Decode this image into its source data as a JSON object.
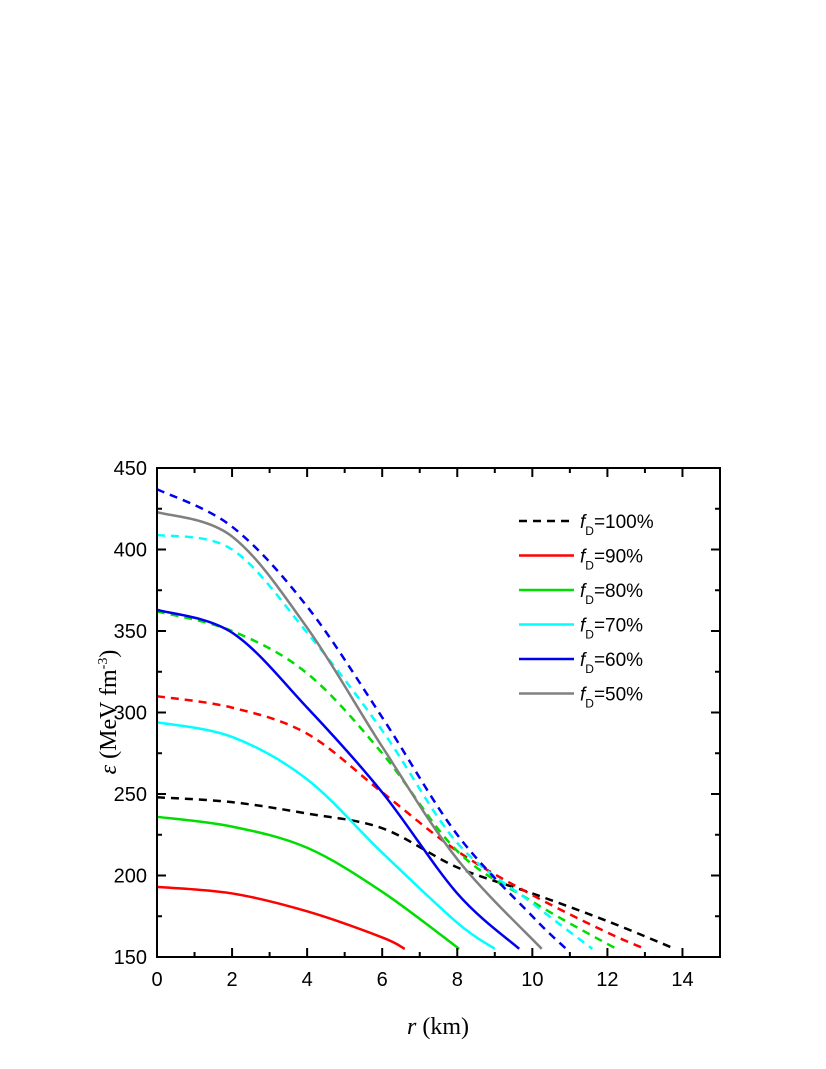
{
  "chart_data": {
    "type": "line",
    "xlabel": {
      "var": "r",
      "unit": "(km)"
    },
    "ylabel": {
      "var": "ε",
      "unit": "(MeV fm",
      "exp": "-3",
      "close": ")"
    },
    "xlim": [
      0,
      15
    ],
    "ylim": [
      150,
      450
    ],
    "xticks": [
      "0",
      "2",
      "4",
      "6",
      "8",
      "10",
      "12",
      "14"
    ],
    "yticks": [
      "150",
      "200",
      "250",
      "300",
      "350",
      "400",
      "450"
    ],
    "grid": false,
    "legend_position": "top-right",
    "legend": [
      {
        "prefix": "f",
        "sub": "D",
        "text": "=100%",
        "color": "#000000",
        "dash": true
      },
      {
        "prefix": "f",
        "sub": "D",
        "text": "=90%",
        "color": "#ff0000",
        "dash": false
      },
      {
        "prefix": "f",
        "sub": "D",
        "text": "=80%",
        "color": "#00dd00",
        "dash": false
      },
      {
        "prefix": "f",
        "sub": "D",
        "text": "=70%",
        "color": "#00ffff",
        "dash": false
      },
      {
        "prefix": "f",
        "sub": "D",
        "text": "=60%",
        "color": "#0000ee",
        "dash": false
      },
      {
        "prefix": "f",
        "sub": "D",
        "text": "=50%",
        "color": "#808080",
        "dash": false
      }
    ],
    "series": [
      {
        "color": "#000000",
        "dash": true,
        "x": [
          0,
          2,
          4,
          6,
          8,
          10,
          12,
          13.8
        ],
        "y": [
          248,
          245,
          238,
          229,
          205,
          189,
          172,
          155
        ]
      },
      {
        "color": "#ff0000",
        "dash": true,
        "x": [
          0,
          2,
          4,
          6,
          8,
          10,
          12,
          13.0
        ],
        "y": [
          310,
          303,
          287,
          251,
          215,
          188,
          165,
          155
        ]
      },
      {
        "color": "#00dd00",
        "dash": true,
        "x": [
          0,
          2,
          4,
          6,
          8,
          10,
          12,
          12.3
        ],
        "y": [
          362,
          350,
          324,
          275,
          215,
          184,
          158,
          155
        ]
      },
      {
        "color": "#00ffff",
        "dash": true,
        "x": [
          0,
          2,
          4,
          6,
          8,
          10,
          11.6
        ],
        "y": [
          409,
          400,
          349,
          289,
          220,
          183,
          155
        ]
      },
      {
        "color": "#0000ee",
        "dash": true,
        "x": [
          0,
          2,
          4,
          6,
          8,
          10,
          10.9
        ],
        "y": [
          437,
          414,
          365,
          297,
          225,
          175,
          155
        ]
      },
      {
        "color": "#ff0000",
        "dash": false,
        "x": [
          0,
          2,
          4,
          6,
          6.6
        ],
        "y": [
          193,
          189,
          178,
          162,
          155
        ]
      },
      {
        "color": "#00dd00",
        "dash": false,
        "x": [
          0,
          2,
          4,
          6,
          8.05
        ],
        "y": [
          236,
          230,
          217,
          190,
          155
        ]
      },
      {
        "color": "#00ffff",
        "dash": false,
        "x": [
          0,
          2,
          4,
          6,
          8,
          9.0
        ],
        "y": [
          294,
          285,
          259,
          214,
          171,
          155
        ]
      },
      {
        "color": "#0000ee",
        "dash": false,
        "x": [
          0,
          2,
          4,
          6,
          8,
          9.65
        ],
        "y": [
          363,
          349,
          303,
          251,
          189,
          155
        ]
      },
      {
        "color": "#808080",
        "dash": false,
        "x": [
          0,
          2,
          4,
          6,
          8,
          10.25
        ],
        "y": [
          423,
          408,
          352,
          279,
          210,
          155
        ]
      }
    ]
  }
}
